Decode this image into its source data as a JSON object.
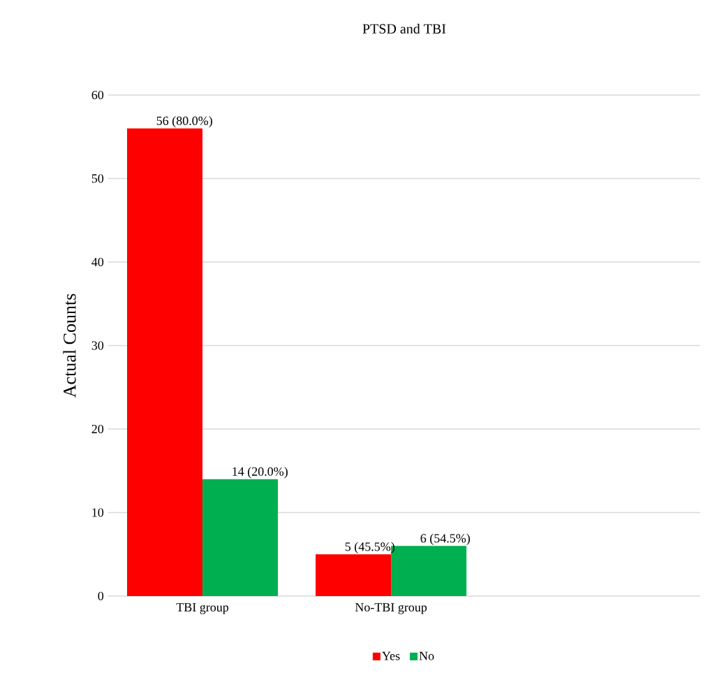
{
  "chart_data": {
    "type": "bar",
    "title": "PTSD and TBI",
    "ylabel": "Actual Counts",
    "categories": [
      "TBI group",
      "No-TBI group"
    ],
    "series": [
      {
        "name": "Yes",
        "color": "#ff0000",
        "values": [
          56,
          5
        ],
        "value_labels": [
          "56 (80.0%)",
          "5 (45.5%)"
        ]
      },
      {
        "name": "No",
        "color": "#00b050",
        "values": [
          14,
          6
        ],
        "value_labels": [
          "14 (20.0%)",
          "6 (54.5%)"
        ]
      }
    ],
    "ylim": [
      0,
      60
    ],
    "yticks": [
      0,
      10,
      20,
      30,
      40,
      50,
      60
    ],
    "grid": "y",
    "legend": "bottom"
  }
}
